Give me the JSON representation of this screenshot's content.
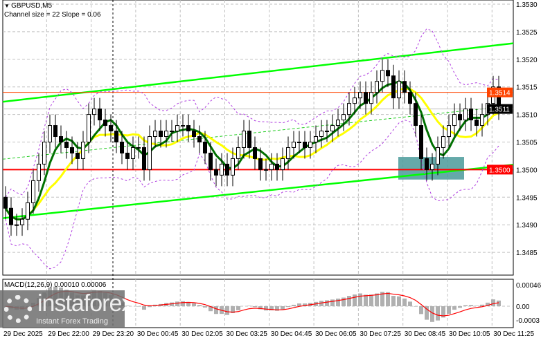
{
  "header": {
    "symbol": "GBPUSD,M5",
    "indicator": "Channel size = 22 Slope = 0.06"
  },
  "macd": {
    "label": "MACD(12,26,9) 0.00010 0.00006",
    "ticks": [
      "0.00046",
      "0.00",
      "-0.0003"
    ]
  },
  "watermark": {
    "brand": "instaforex",
    "tagline": "Instant Forex Trading"
  },
  "colors": {
    "up_channel": "#00ff00",
    "fast_ma": "#007000",
    "slow_ma": "#ffff00",
    "envelope": "#b040e0",
    "resistance": "#ff4400",
    "support": "#ff0000",
    "zone": "#4a9a9a",
    "macd_hist": "#b0b0b0",
    "macd_signal": "#ff0000"
  },
  "chart_data": {
    "type": "candlestick",
    "timeframe": "M5",
    "ylim": [
      1.3481,
      1.3531
    ],
    "y_ticks": [
      "1.3530",
      "1.3525",
      "1.3520",
      "1.3515",
      "1.3510",
      "1.3505",
      "1.3500",
      "1.3495",
      "1.3490",
      "1.3485"
    ],
    "x_ticks": [
      "29 Dec 2025",
      "29 Dec 22:00",
      "29 Dec 23:20",
      "30 Dec 00:45",
      "30 Dec 02:05",
      "30 Dec 03:25",
      "30 Dec 04:45",
      "30 Dec 06:05",
      "30 Dec 07:25",
      "30 Dec 08:45",
      "30 Dec 10:05",
      "30 Dec 11:25"
    ],
    "first_open": 1.3495,
    "closes": [
      1.3493,
      1.349,
      1.349,
      1.3491,
      1.3494,
      1.3498,
      1.3501,
      1.3505,
      1.3508,
      1.3506,
      1.3505,
      1.3504,
      1.3503,
      1.3502,
      1.3505,
      1.351,
      1.3511,
      1.3509,
      1.3508,
      1.3507,
      1.3505,
      1.3503,
      1.3502,
      1.3504,
      1.3504,
      1.35,
      1.3506,
      1.3507,
      1.3506,
      1.3507,
      1.3507,
      1.3508,
      1.3508,
      1.3507,
      1.3506,
      1.3505,
      1.3503,
      1.35,
      1.3499,
      1.3501,
      1.3499,
      1.3502,
      1.3504,
      1.3507,
      1.3504,
      1.3502,
      1.35,
      1.35,
      1.3501,
      1.35,
      1.3502,
      1.3504,
      1.3505,
      1.3505,
      1.3504,
      1.3505,
      1.3506,
      1.3507,
      1.3507,
      1.3508,
      1.3509,
      1.351,
      1.3512,
      1.3513,
      1.3514,
      1.3512,
      1.3514,
      1.3516,
      1.3518,
      1.3517,
      1.3513,
      1.3516,
      1.3514,
      1.3512,
      1.3508,
      1.3502,
      1.35,
      1.3501,
      1.3504,
      1.3506,
      1.3508,
      1.351,
      1.3509,
      1.3511,
      1.3509,
      1.3508,
      1.351,
      1.3512,
      1.3515,
      1.3511
    ],
    "channel": {
      "upper": [
        1.35123,
        1.35229
      ],
      "middle": [
        1.35019,
        1.35116
      ],
      "lower": [
        1.34912,
        1.35009
      ]
    },
    "levels": {
      "resistance": {
        "value": 1.3514,
        "label": "1.3514"
      },
      "current": {
        "value": 1.3511,
        "label": "1.3511"
      },
      "support": {
        "value": 1.35,
        "label": "1.3500"
      }
    },
    "zone": {
      "top": 1.35023,
      "bottom": 1.34982,
      "from": "30 Dec 08:45",
      "to": "30 Dec 10:05"
    }
  }
}
